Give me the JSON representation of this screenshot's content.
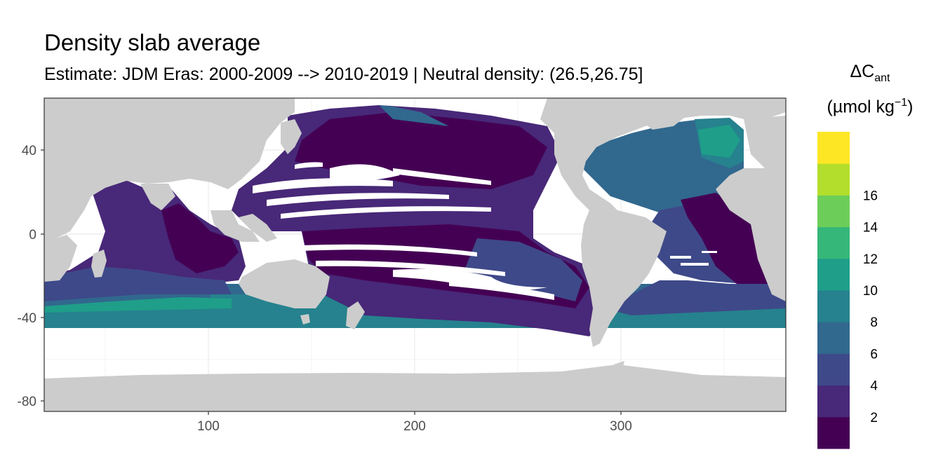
{
  "title": "Density slab average",
  "subtitle": "Estimate: JDM Eras: 2000-2009 --> 2010-2019 | Neutral density: (26.5,26.75]",
  "axes": {
    "x": {
      "range": [
        20,
        380
      ],
      "ticks": [
        100,
        200,
        300
      ],
      "tick_labels": [
        "100",
        "200",
        "300"
      ]
    },
    "y": {
      "range": [
        -85,
        63
      ],
      "ticks": [
        40,
        0,
        -40,
        -80
      ],
      "tick_labels": [
        "40",
        "0",
        "-40",
        "-80"
      ]
    }
  },
  "legend": {
    "title_main": "ΔC",
    "title_sub": "ant",
    "units_main": "(µmol kg",
    "units_sup": "−1",
    "units_close": ")",
    "tick_labels": [
      "2",
      "4",
      "6",
      "8",
      "10",
      "12",
      "14",
      "16"
    ],
    "colors": [
      "#440154",
      "#482878",
      "#3E4989",
      "#31688E",
      "#26828E",
      "#1F9E89",
      "#35B779",
      "#6CCE59",
      "#B4DE2C",
      "#FDE725"
    ]
  },
  "colors": {
    "land": "#cccccc",
    "nodata": "#ffffff",
    "grid": "#ebebeb",
    "panel_border": "#333333"
  }
}
